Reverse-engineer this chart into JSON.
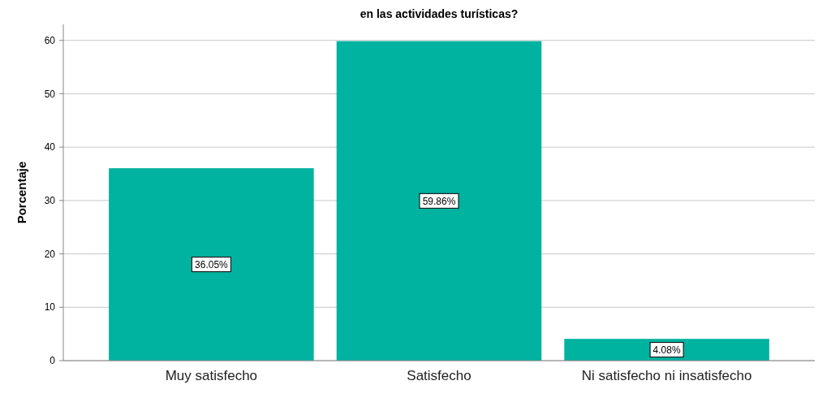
{
  "chart_data": {
    "type": "bar",
    "title": "en las actividades turísticas?",
    "ylabel": "Porcentaje",
    "categories": [
      "Muy satisfecho",
      "Satisfecho",
      "Ni satisfecho ni insatisfecho"
    ],
    "values": [
      36.05,
      59.86,
      4.08
    ],
    "color": "#00b2a0",
    "value_labels": [
      "36.05%",
      "59.86%",
      "4.08%"
    ],
    "ylim": [
      0,
      63
    ],
    "yticks": [
      0,
      10,
      20,
      30,
      40,
      50,
      60
    ],
    "grid": "y"
  }
}
